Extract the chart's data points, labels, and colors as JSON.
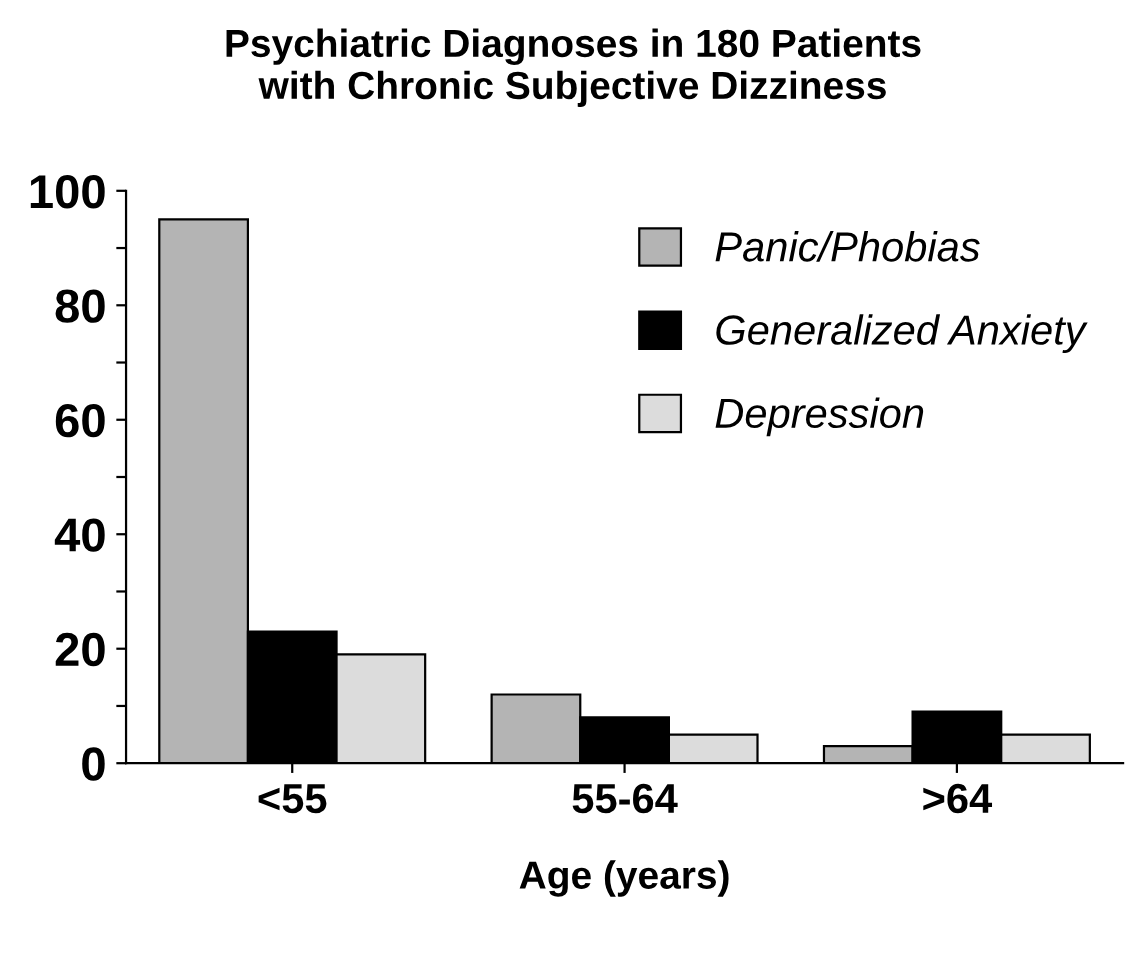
{
  "chart_data": {
    "type": "bar",
    "title": "Psychiatric Diagnoses in 180 Patients\nwith Chronic Subjective Dizziness",
    "xlabel": "Age (years)",
    "categories": [
      "<55",
      "55-64",
      ">64"
    ],
    "series": [
      {
        "name": "Panic/Phobias",
        "color": "#b4b4b4",
        "values": [
          95,
          12,
          3
        ]
      },
      {
        "name": "Generalized Anxiety",
        "color": "#000000",
        "values": [
          23,
          8,
          9
        ]
      },
      {
        "name": "Depression",
        "color": "#dcdcdc",
        "values": [
          19,
          5,
          5
        ]
      }
    ],
    "ylim": [
      0,
      100
    ],
    "yticks": [
      0,
      {
        "value": 10,
        "label": null
      },
      20,
      {
        "value": 30,
        "label": null
      },
      40,
      {
        "value": 50,
        "label": null
      },
      60,
      {
        "value": 70,
        "label": null
      },
      80,
      {
        "value": 90,
        "label": null
      },
      100
    ],
    "grid": false,
    "legend": "top right"
  }
}
